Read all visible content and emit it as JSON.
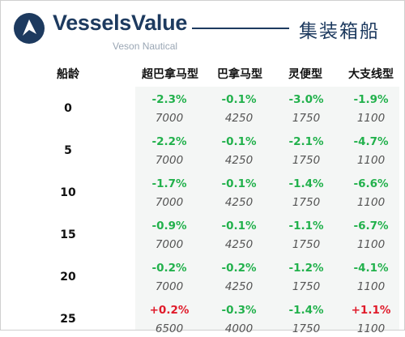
{
  "header": {
    "brand": "VesselsValue",
    "brand_sub": "Veson Nautical",
    "title": "集装箱船"
  },
  "columns": [
    "船龄",
    "超巴拿马型",
    "巴拿马型",
    "灵便型",
    "大支线型"
  ],
  "rows": [
    {
      "age": "0",
      "changes": [
        "-2.3%",
        "-0.1%",
        "-3.0%",
        "-1.9%"
      ],
      "values": [
        "7000",
        "4250",
        "1750",
        "1100"
      ]
    },
    {
      "age": "5",
      "changes": [
        "-2.2%",
        "-0.1%",
        "-2.1%",
        "-4.7%"
      ],
      "values": [
        "7000",
        "4250",
        "1750",
        "1100"
      ]
    },
    {
      "age": "10",
      "changes": [
        "-1.7%",
        "-0.1%",
        "-1.4%",
        "-6.6%"
      ],
      "values": [
        "7000",
        "4250",
        "1750",
        "1100"
      ]
    },
    {
      "age": "15",
      "changes": [
        "-0.9%",
        "-0.1%",
        "-1.1%",
        "-6.7%"
      ],
      "values": [
        "7000",
        "4250",
        "1750",
        "1100"
      ]
    },
    {
      "age": "20",
      "changes": [
        "-0.2%",
        "-0.2%",
        "-1.2%",
        "-4.1%"
      ],
      "values": [
        "7000",
        "4250",
        "1750",
        "1100"
      ]
    },
    {
      "age": "25",
      "changes": [
        "+0.2%",
        "-0.3%",
        "-1.4%",
        "+1.1%"
      ],
      "values": [
        "6500",
        "4000",
        "1750",
        "1100"
      ]
    }
  ],
  "colors": {
    "negative": "#22b14c",
    "positive": "#e01b2a",
    "brand": "#1d3a5f"
  }
}
